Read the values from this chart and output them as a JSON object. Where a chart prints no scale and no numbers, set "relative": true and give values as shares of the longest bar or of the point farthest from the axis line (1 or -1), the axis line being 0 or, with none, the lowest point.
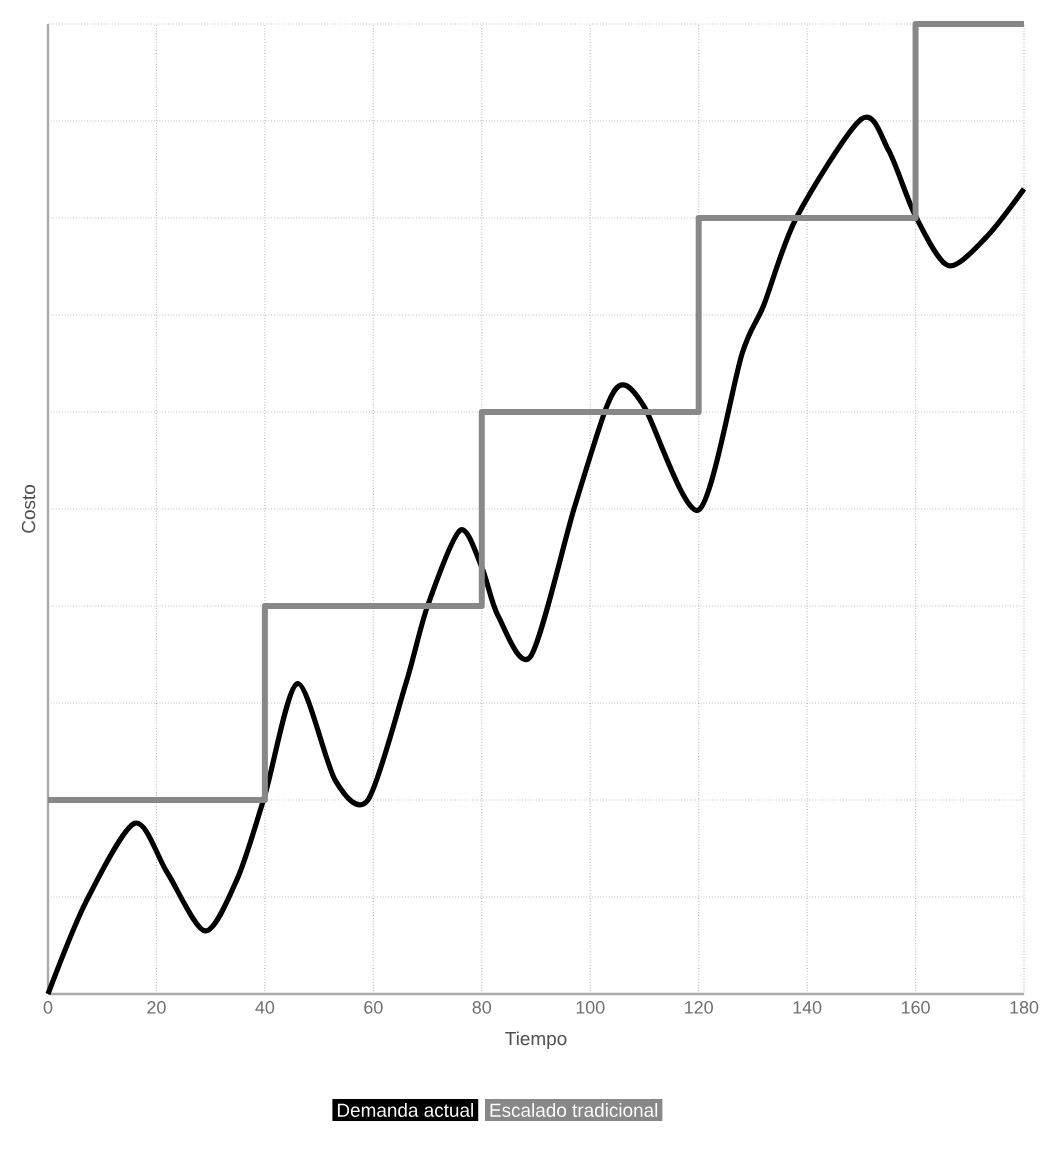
{
  "chart_data": {
    "type": "line",
    "xlabel": "Tiempo",
    "ylabel": "Costo",
    "relative": true,
    "xlim": [
      0,
      180
    ],
    "xticks": [
      0,
      20,
      40,
      60,
      80,
      100,
      120,
      140,
      160,
      180
    ],
    "grid": true,
    "legend": "bottom",
    "tick_labels": "x",
    "marker": "none",
    "line_style": "solid",
    "series": [
      {
        "name": "Demanda actual",
        "color": "#000000",
        "x": [
          0,
          7,
          16,
          22,
          29,
          35,
          40,
          46,
          53,
          59,
          66,
          70,
          76,
          80,
          83,
          89,
          97,
          103,
          106,
          110,
          120,
          128,
          132,
          138,
          150,
          155,
          160,
          166,
          173,
          180
        ],
        "values": [
          0,
          0.095,
          0.176,
          0.125,
          0.065,
          0.12,
          0.205,
          0.32,
          0.22,
          0.2,
          0.32,
          0.4,
          0.478,
          0.44,
          0.39,
          0.348,
          0.5,
          0.605,
          0.628,
          0.605,
          0.499,
          0.66,
          0.71,
          0.8,
          0.902,
          0.87,
          0.802,
          0.751,
          0.78,
          0.83
        ]
      },
      {
        "name": "Escalado tradicional",
        "color": "#888888",
        "type": "step",
        "x": [
          0,
          40,
          80,
          120,
          160,
          180
        ],
        "values": [
          0.2,
          0.4,
          0.6,
          0.8,
          1.0,
          1.0
        ]
      }
    ]
  }
}
